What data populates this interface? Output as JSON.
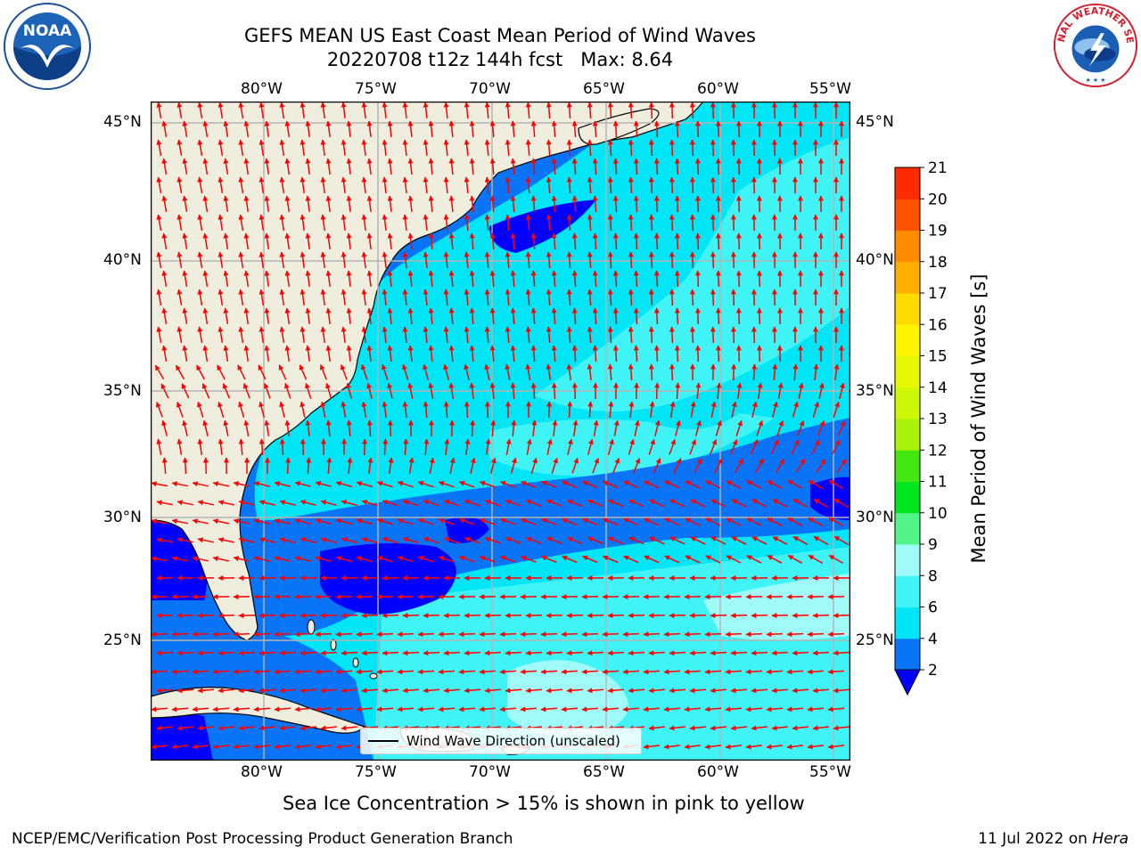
{
  "header": {
    "title_line1": "GEFS MEAN US East Coast Mean Period of Wind Waves",
    "title_line2": "20220708 t12z 144h fcst   Max: 8.64"
  },
  "logos": {
    "left": "noaa-logo",
    "right": "national-weather-service-logo",
    "left_text": "NOAA",
    "right_text": "NATIONAL WEATHER SERVICE"
  },
  "map": {
    "lon_labels": [
      "80°W",
      "75°W",
      "70°W",
      "65°W",
      "60°W",
      "55°W"
    ],
    "lat_labels": [
      "45°N",
      "40°N",
      "35°N",
      "30°N",
      "25°N"
    ],
    "legend_label": "Wind Wave Direction (unscaled)",
    "arrow_color": "#ff0000",
    "land_color": "#efedde"
  },
  "colorbar": {
    "label": "Mean Period of Wind Waves [s]",
    "ticks": [
      "2",
      "4",
      "6",
      "8",
      "9",
      "10",
      "11",
      "12",
      "13",
      "14",
      "15",
      "16",
      "17",
      "18",
      "19",
      "20",
      "21"
    ],
    "colors": [
      "#0a74f7",
      "#00e6f6",
      "#40f4f6",
      "#a0faf8",
      "#52f58a",
      "#00e61e",
      "#44e611",
      "#a9f20a",
      "#ccf707",
      "#e8f703",
      "#fef500",
      "#ffdb00",
      "#ffaf00",
      "#ff8c00",
      "#ff5200",
      "#ff2a00",
      "#ff0000"
    ],
    "extend_color": "#0000ff"
  },
  "footer": {
    "note": "Sea Ice Concentration > 15% is shown in pink to yellow",
    "left": "NCEP/EMC/Verification Post Processing Product Generation Branch",
    "right_date": "11 Jul 2022 on ",
    "right_host": "Hera"
  }
}
